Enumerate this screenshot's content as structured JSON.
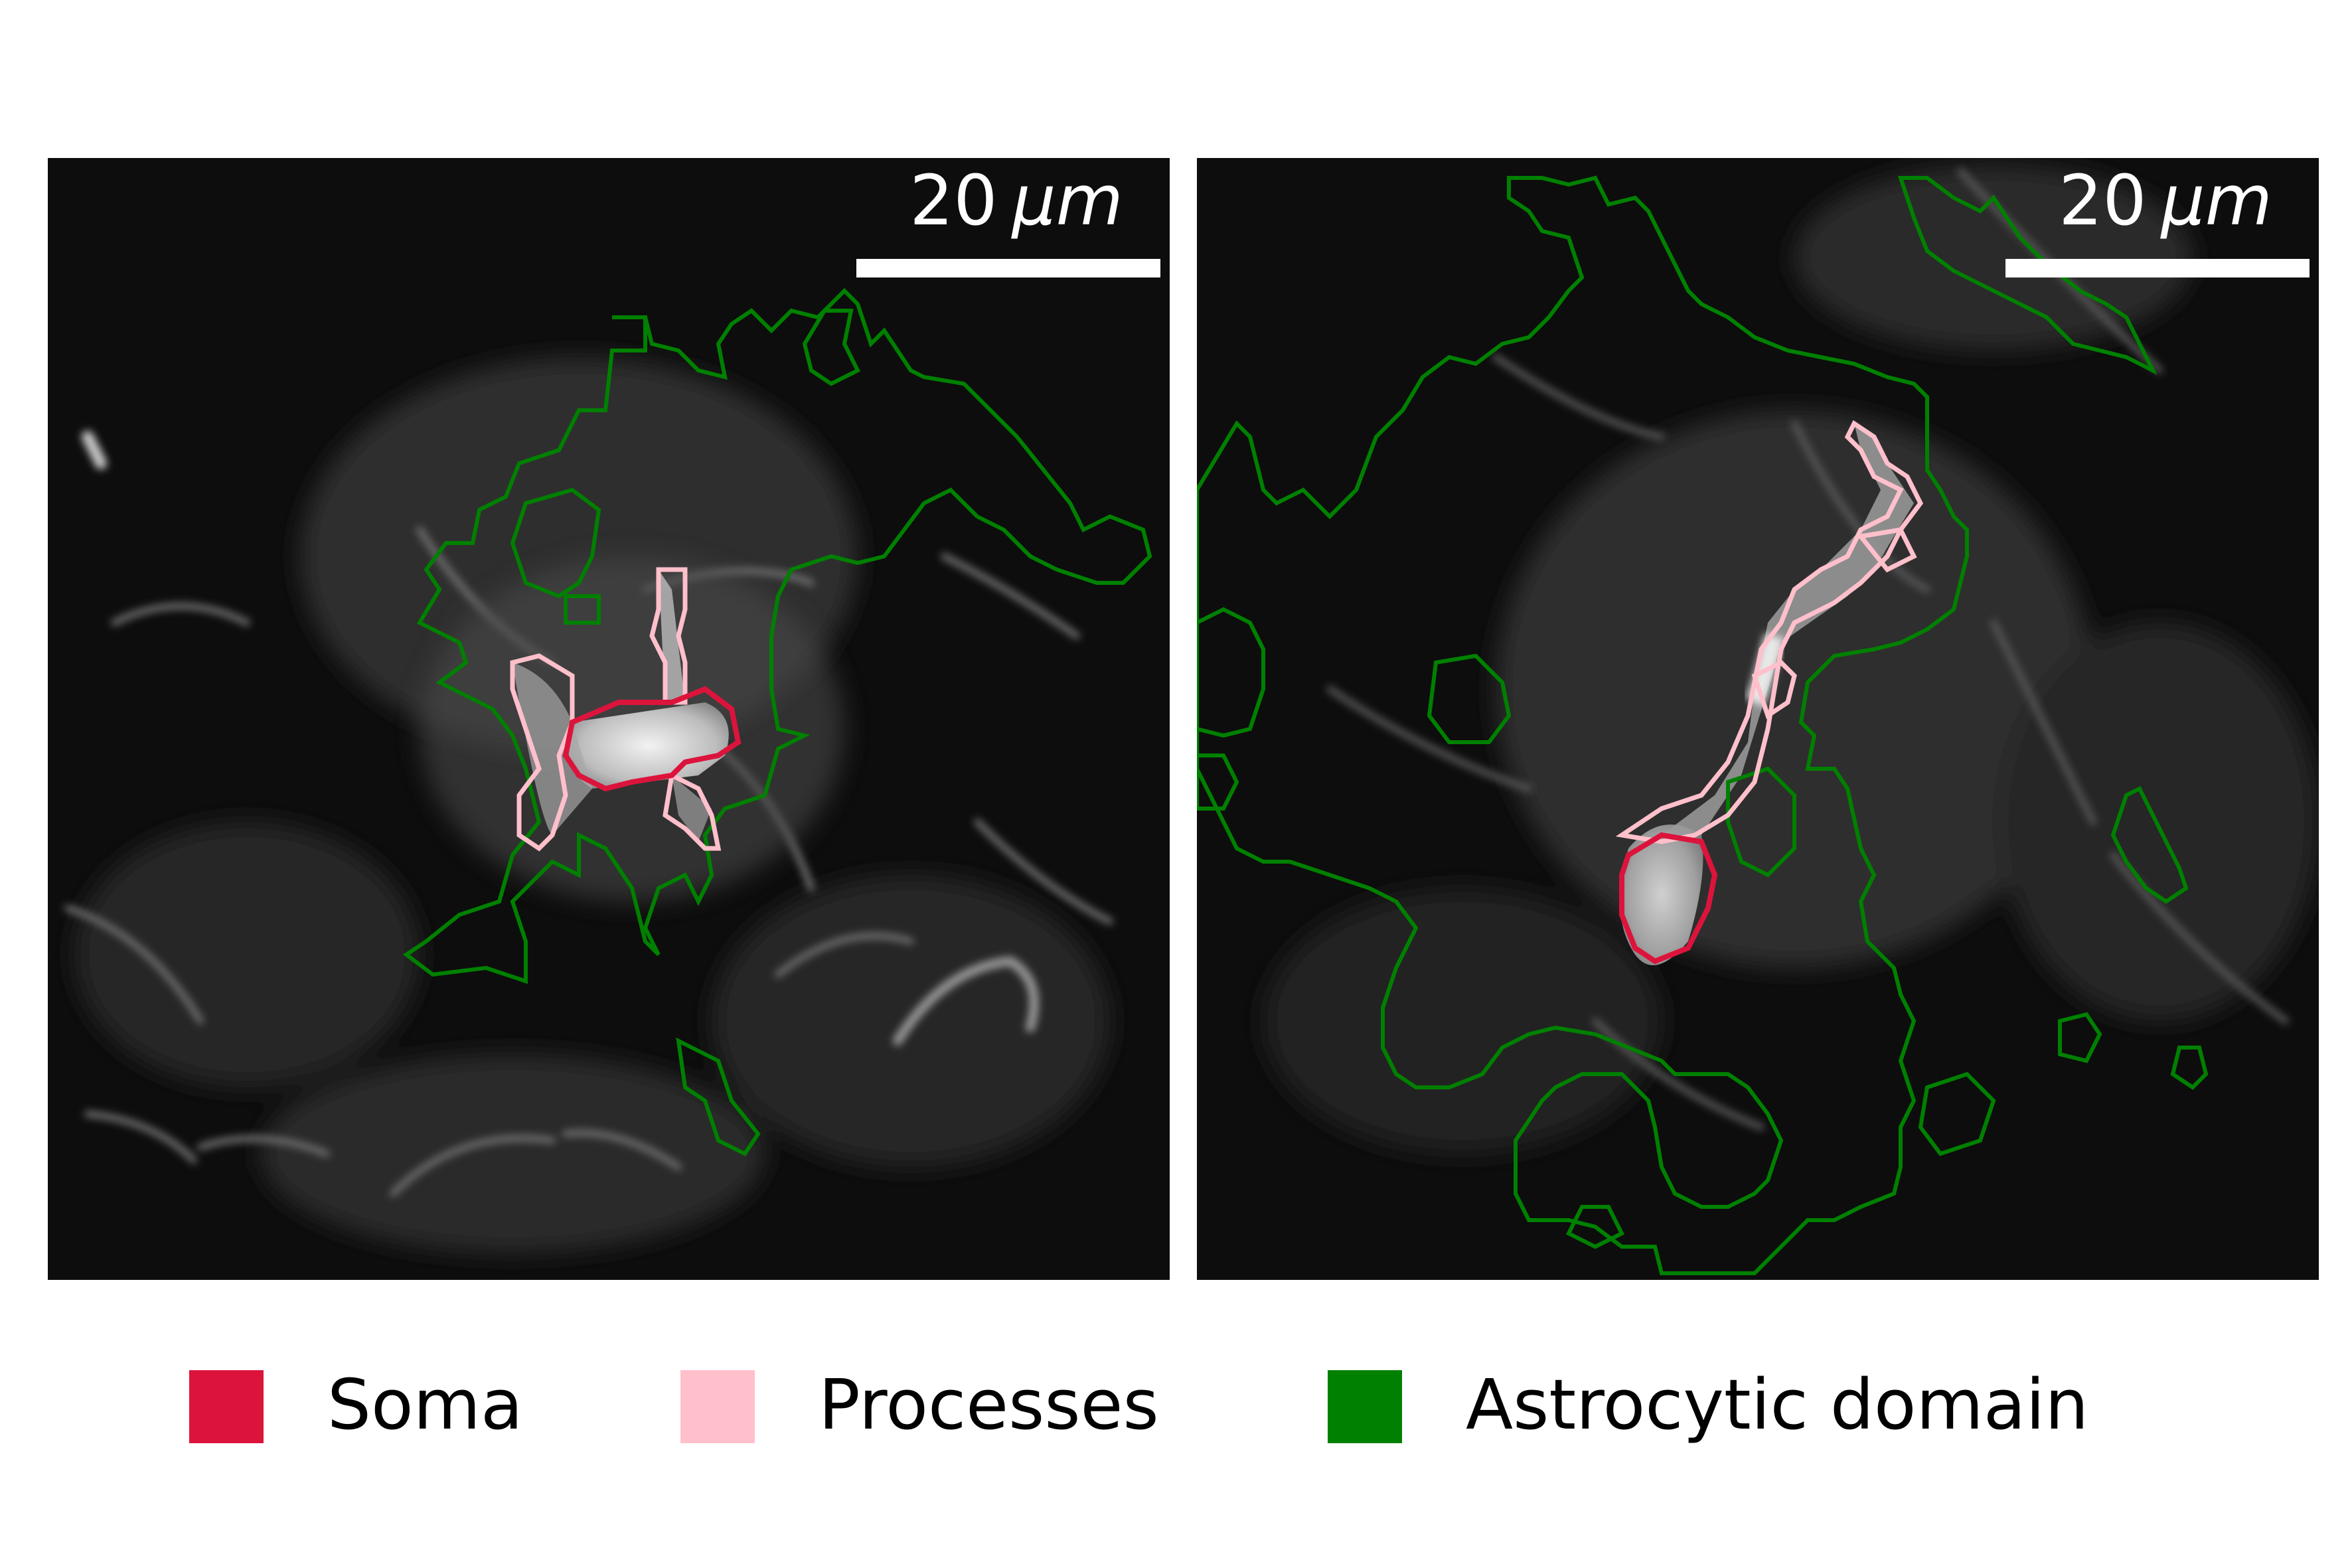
{
  "panels": [
    {
      "id": "left",
      "scale_value": "20",
      "scale_unit": "μm"
    },
    {
      "id": "right",
      "scale_value": "20",
      "scale_unit": "μm"
    }
  ],
  "legend": [
    {
      "label": "Soma",
      "color": "#dc143c"
    },
    {
      "label": "Processes",
      "color": "#ffc0cb"
    },
    {
      "label": "Astrocytic domain",
      "color": "#008000"
    }
  ],
  "colors": {
    "background": "#ffffff",
    "image_background": "#0d0d0d",
    "scale_bar": "#ffffff"
  }
}
